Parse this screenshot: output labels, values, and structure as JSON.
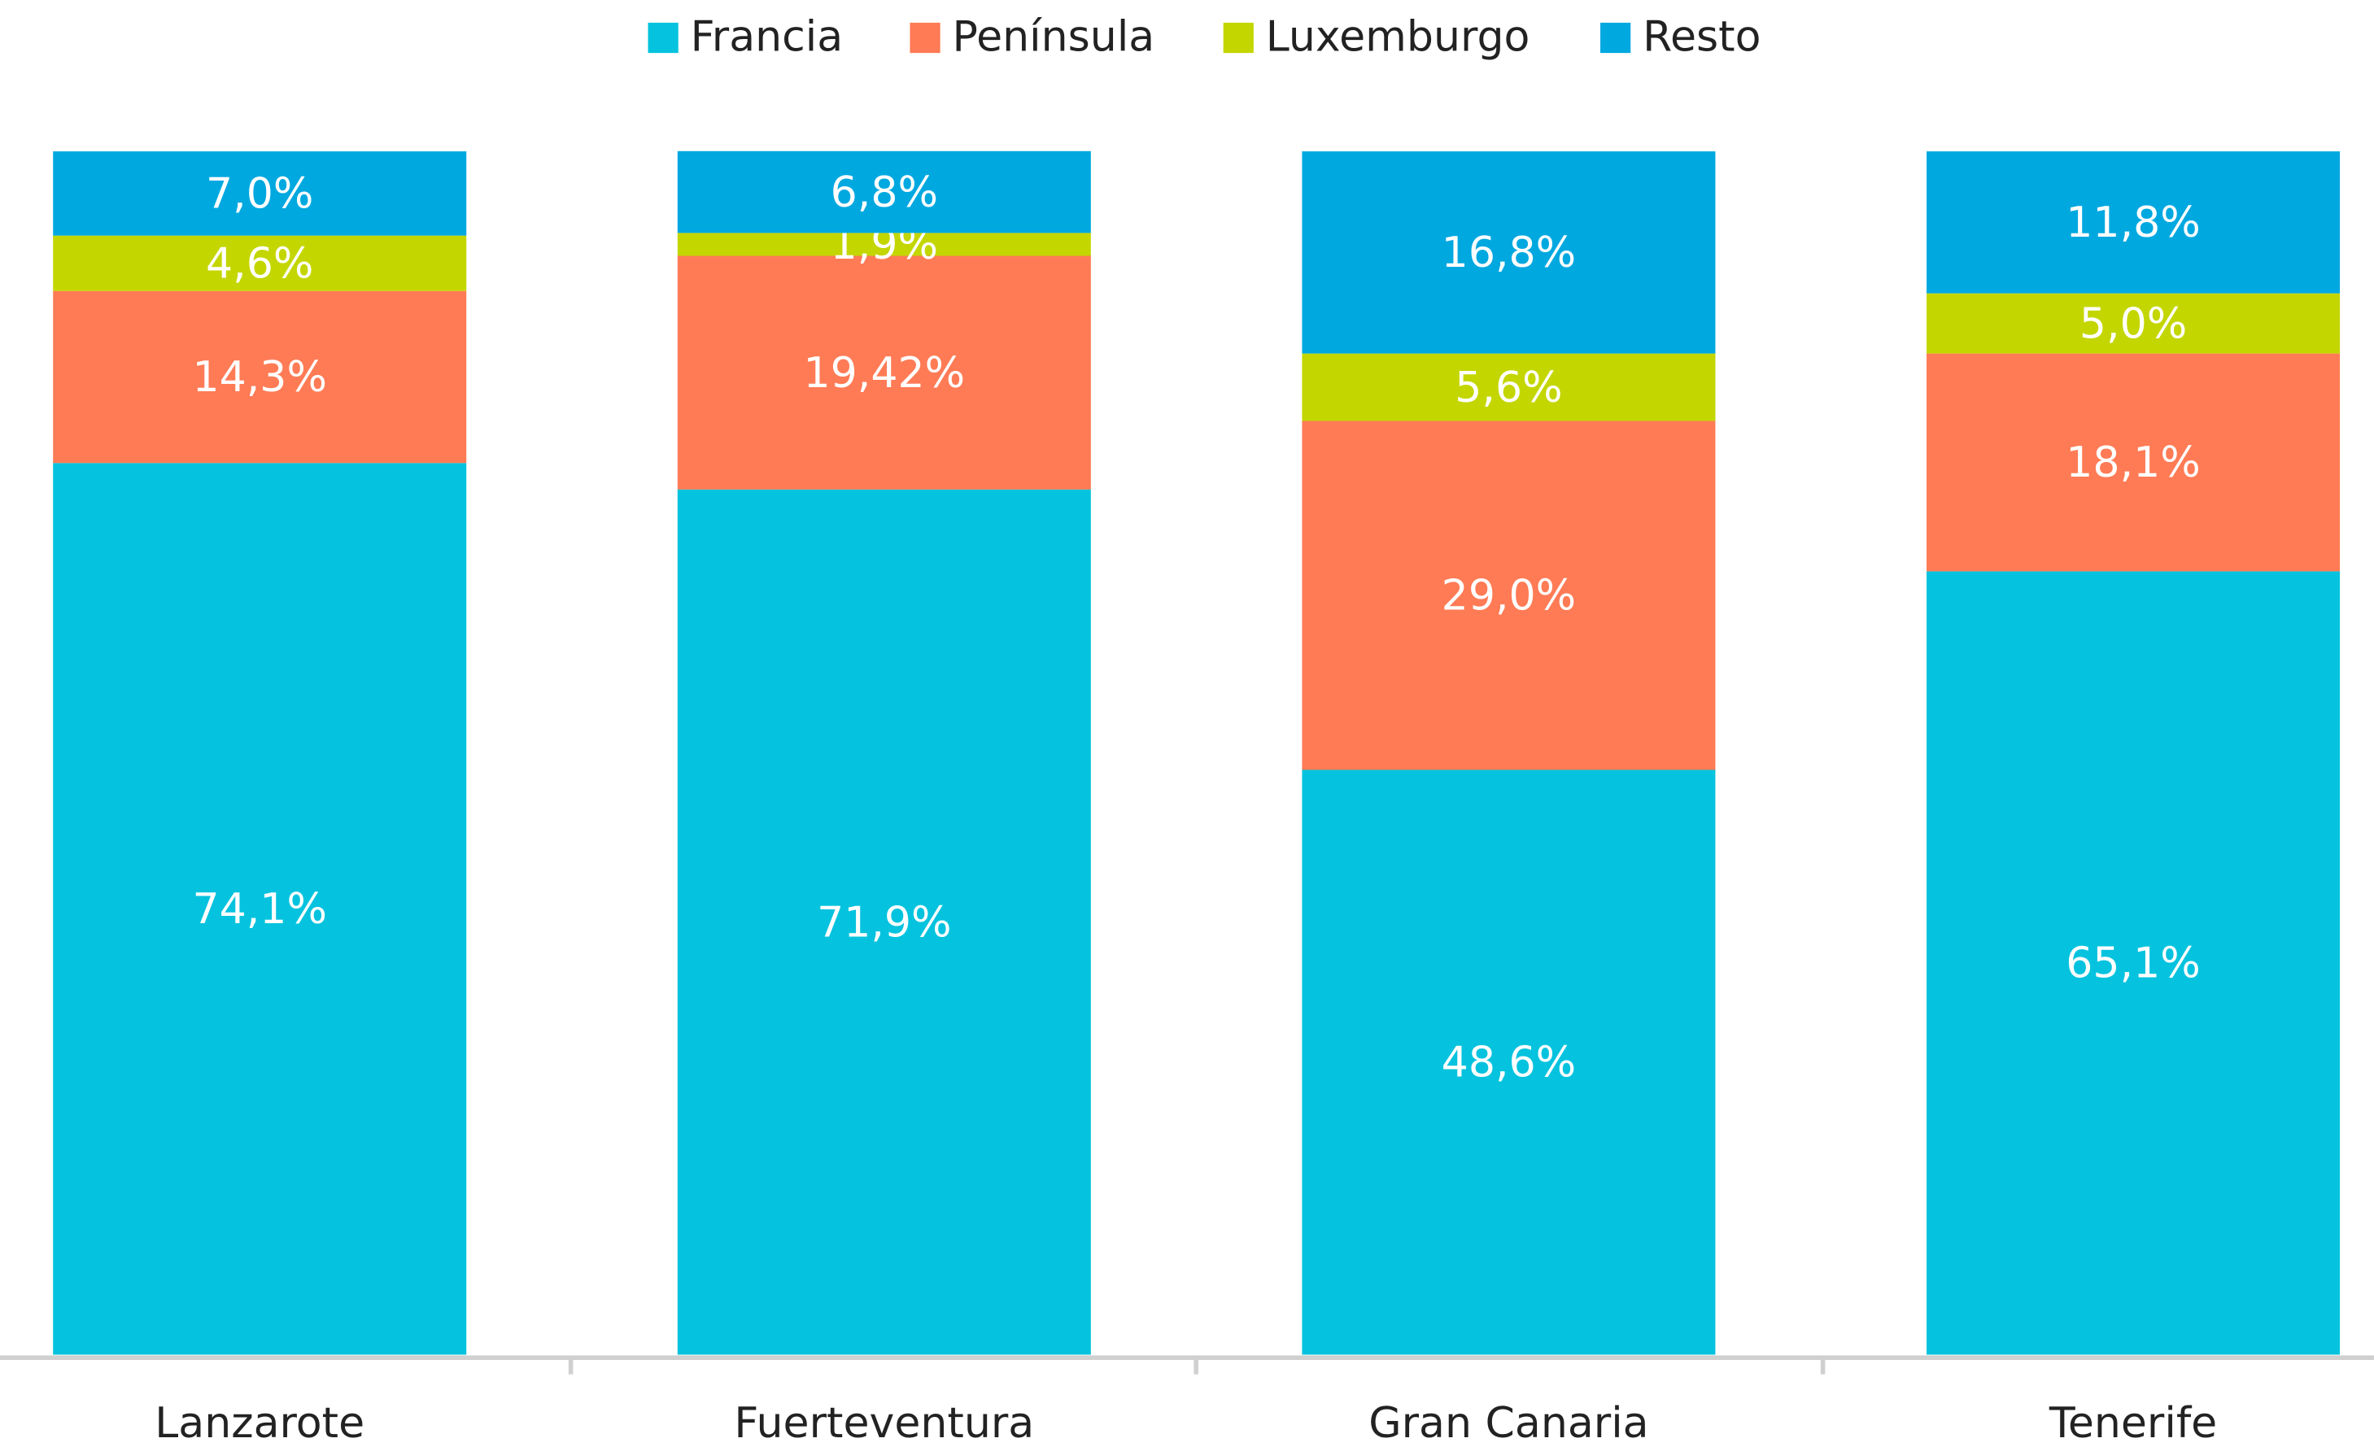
{
  "chart_data": {
    "type": "stacked_bar",
    "categories": [
      "Lanzarote",
      "Fuerteventura",
      "Gran Canaria",
      "Tenerife"
    ],
    "ylim": [
      0,
      100
    ],
    "series": [
      {
        "name": "Francia",
        "color": "#05c3de",
        "values": [
          74.1,
          71.9,
          48.6,
          65.1
        ],
        "value_labels": [
          "74,1%",
          "71,9%",
          "48,6%",
          "65,1%"
        ]
      },
      {
        "name": "Península",
        "color": "#ff7b55",
        "values": [
          14.3,
          19.42,
          29.0,
          18.1
        ],
        "value_labels": [
          "14,3%",
          "19,42%",
          "29,0%",
          "18,1%"
        ]
      },
      {
        "name": "Luxemburgo",
        "color": "#c4d600",
        "values": [
          4.6,
          1.9,
          5.6,
          5.0
        ],
        "value_labels": [
          "4,6%",
          "1,9%",
          "5,6%",
          "5,0%"
        ]
      },
      {
        "name": "Resto",
        "color": "#00a8e0",
        "values": [
          7.0,
          6.8,
          16.8,
          11.8
        ],
        "value_labels": [
          "7,0%",
          "6,8%",
          "16,8%",
          "11,8%"
        ]
      }
    ],
    "legend": "top"
  }
}
